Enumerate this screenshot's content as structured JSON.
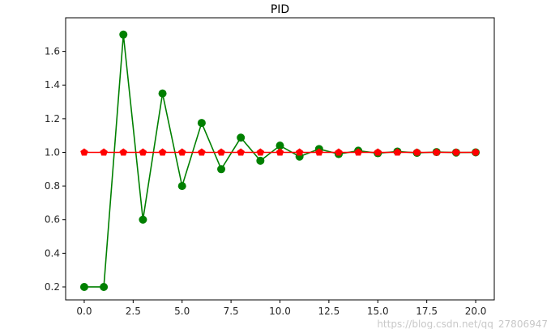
{
  "chart_data": {
    "type": "line",
    "title": "PID",
    "xlabel": "",
    "ylabel": "",
    "xlim": [
      -0.95,
      20.95
    ],
    "ylim": [
      0.123,
      1.8
    ],
    "xticks": [
      0.0,
      2.5,
      5.0,
      7.5,
      10.0,
      12.5,
      15.0,
      17.5,
      20.0
    ],
    "xtick_labels": [
      "0.0",
      "2.5",
      "5.0",
      "7.5",
      "10.0",
      "12.5",
      "15.0",
      "17.5",
      "20.0"
    ],
    "yticks": [
      0.2,
      0.4,
      0.6,
      0.8,
      1.0,
      1.2,
      1.4,
      1.6
    ],
    "ytick_labels": [
      "0.2",
      "0.4",
      "0.6",
      "0.8",
      "1.0",
      "1.2",
      "1.4",
      "1.6"
    ],
    "grid": false,
    "x": [
      0,
      1,
      2,
      3,
      4,
      5,
      6,
      7,
      8,
      9,
      10,
      11,
      12,
      13,
      14,
      15,
      16,
      17,
      18,
      19,
      20
    ],
    "series": [
      {
        "color": "#008000",
        "marker": "circle",
        "values": [
          0.2,
          0.2,
          1.7,
          0.6,
          1.35,
          0.8,
          1.175,
          0.9,
          1.0875,
          0.95,
          1.04,
          0.975,
          1.02,
          0.99,
          1.01,
          0.995,
          1.005,
          0.997,
          1.002,
          0.999,
          1.0
        ]
      },
      {
        "color": "#ff0000",
        "marker": "pentagon",
        "values": [
          1,
          1,
          1,
          1,
          1,
          1,
          1,
          1,
          1,
          1,
          1,
          1,
          1,
          1,
          1,
          1,
          1,
          1,
          1,
          1,
          1
        ]
      }
    ]
  },
  "watermark": "https://blog.csdn.net/qq_27806947"
}
